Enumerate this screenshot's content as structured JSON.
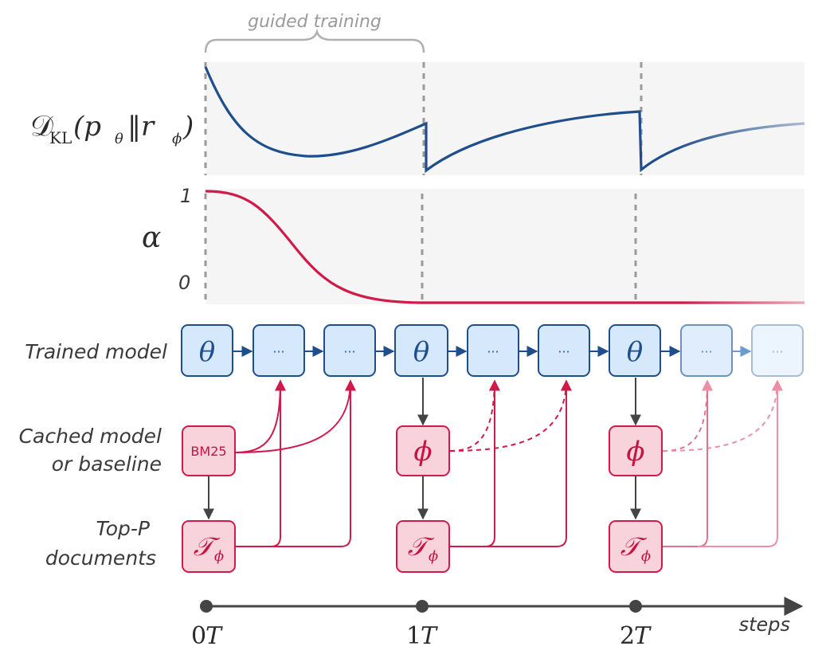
{
  "title_annotation": "guided training",
  "kl_label": {
    "symbol": "𝒟",
    "sub": "KL",
    "expr": "(p",
    "p_sub": "θ",
    "bars": "‖r",
    "r_sub": "ϕ",
    "close": ")"
  },
  "alpha_label": "α",
  "alpha_axis": {
    "top": "1",
    "bottom": "0"
  },
  "row_labels": {
    "trained": "Trained model",
    "cached_line1": "Cached model",
    "cached_line2": "or baseline",
    "topp_line1": "Top-P",
    "topp_line2": "documents"
  },
  "nodes": {
    "theta": "θ",
    "ellipsis": "···",
    "bm25": "BM25",
    "phi": "ϕ",
    "tau": "𝒯",
    "tau_sub": "ϕ"
  },
  "timeline": {
    "label": "steps",
    "ticks": [
      {
        "num": "0",
        "unit": "T"
      },
      {
        "num": "1",
        "unit": "T"
      },
      {
        "num": "2",
        "unit": "T"
      }
    ]
  },
  "colors": {
    "blue": "#1f4e8c",
    "blue_fill": "#d6e8fb",
    "red": "#d11a4a",
    "red_fill": "#f8d3dc",
    "panel": "#f5f5f5",
    "guide": "#9a9a9a",
    "axis": "#444444"
  }
}
